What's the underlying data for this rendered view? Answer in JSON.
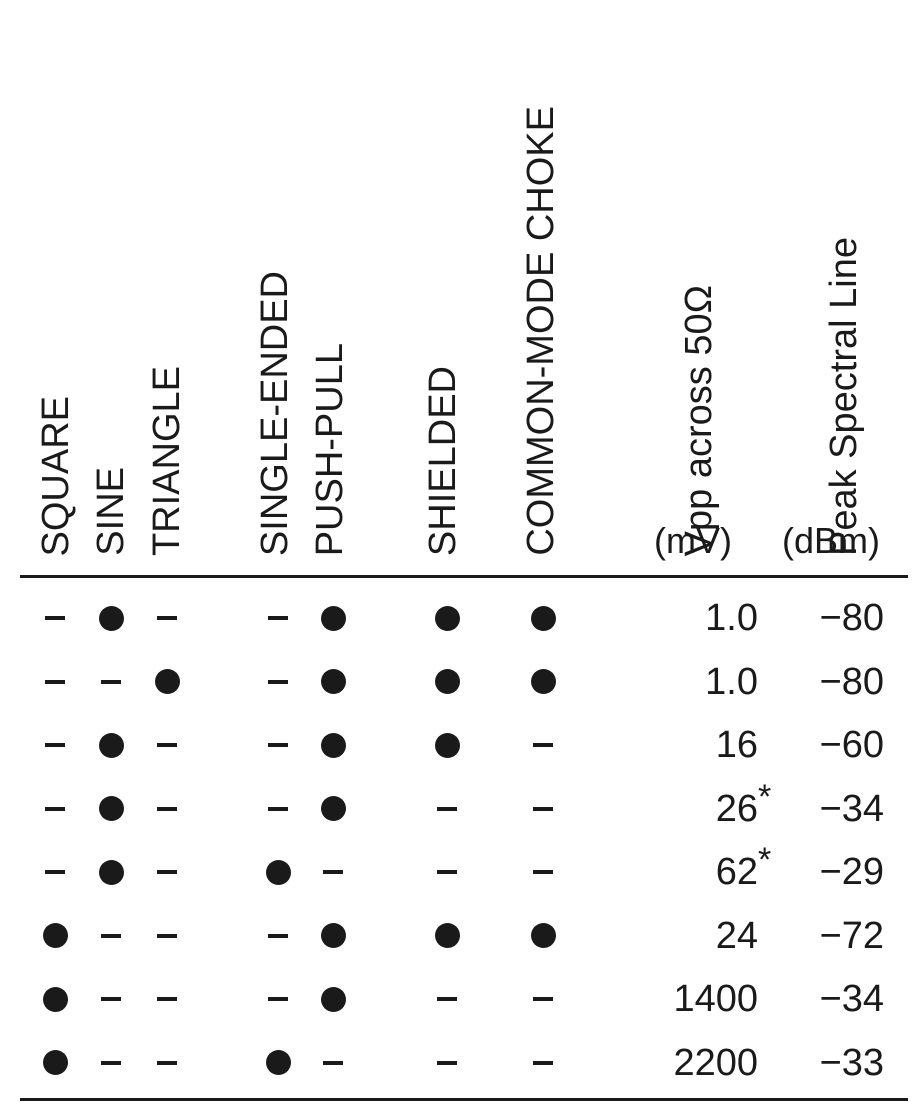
{
  "headers": {
    "square": "SQUARE",
    "sine": "SINE",
    "triangle": "TRIANGLE",
    "single_ended": "SINGLE-ENDED",
    "push_pull": "PUSH-PULL",
    "shielded": "SHIELDED",
    "common_mode_choke": "COMMON-MODE CHOKE",
    "vpp": "Vpp across 50Ω",
    "vpp_unit": "(mV)",
    "peak": "Peak Spectral Line",
    "peak_unit": "(dBm)"
  },
  "symbols": {
    "yes": "●",
    "no": "–"
  },
  "rows": [
    {
      "flags": [
        0,
        1,
        0,
        0,
        1,
        1,
        1
      ],
      "vpp": "1.0",
      "vpp_note": "",
      "dbm": "−80"
    },
    {
      "flags": [
        0,
        0,
        1,
        0,
        1,
        1,
        1
      ],
      "vpp": "1.0",
      "vpp_note": "",
      "dbm": "−80"
    },
    {
      "flags": [
        0,
        1,
        0,
        0,
        1,
        1,
        0
      ],
      "vpp": "16",
      "vpp_note": "",
      "dbm": "−60"
    },
    {
      "flags": [
        0,
        1,
        0,
        0,
        1,
        0,
        0
      ],
      "vpp": "26",
      "vpp_note": "*",
      "dbm": "−34"
    },
    {
      "flags": [
        0,
        1,
        0,
        1,
        0,
        0,
        0
      ],
      "vpp": "62",
      "vpp_note": "*",
      "dbm": "−29"
    },
    {
      "flags": [
        1,
        0,
        0,
        0,
        1,
        1,
        1
      ],
      "vpp": "24",
      "vpp_note": "",
      "dbm": "−72"
    },
    {
      "flags": [
        1,
        0,
        0,
        0,
        1,
        0,
        0
      ],
      "vpp": "1400",
      "vpp_note": "",
      "dbm": "−34"
    },
    {
      "flags": [
        1,
        0,
        0,
        1,
        0,
        0,
        0
      ],
      "vpp": "2200",
      "vpp_note": "",
      "dbm": "−33"
    }
  ]
}
